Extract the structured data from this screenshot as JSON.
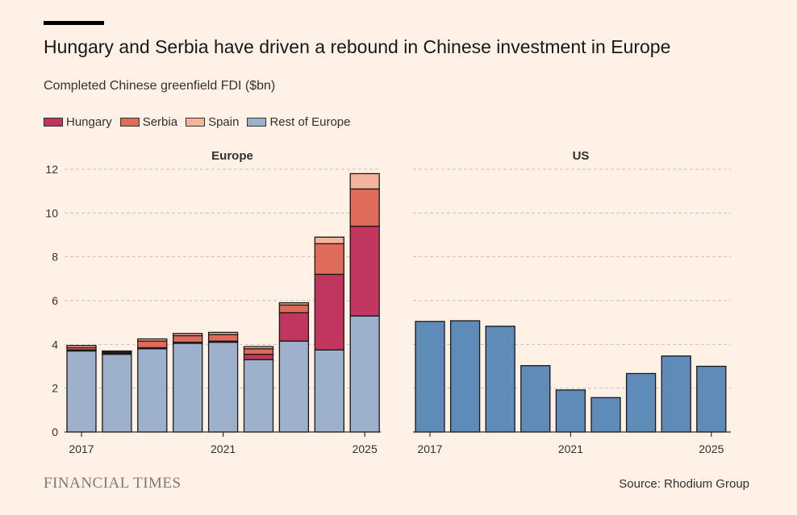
{
  "header": {
    "title": "Hungary and Serbia have driven a rebound in Chinese investment in Europe",
    "subtitle": "Completed Chinese greenfield FDI ($bn)"
  },
  "footer": {
    "brand": "FINANCIAL TIMES",
    "source": "Source: Rhodium Group"
  },
  "colors": {
    "hungary": "#c0365f",
    "serbia": "#df6b5a",
    "spain": "#f2b49a",
    "rest_of_europe": "#9eb1cc",
    "us": "#5f8bb9",
    "grid": "#c9c1b8",
    "axis": "#33302e"
  },
  "legend": [
    {
      "label": "Hungary",
      "color": "#c0365f"
    },
    {
      "label": "Serbia",
      "color": "#df6b5a"
    },
    {
      "label": "Spain",
      "color": "#f2b49a"
    },
    {
      "label": "Rest of Europe",
      "color": "#9eb1cc"
    }
  ],
  "chart_data": [
    {
      "type": "bar",
      "stacked": true,
      "title": "Europe",
      "x": [
        2017,
        2018,
        2019,
        2020,
        2021,
        2022,
        2023,
        2024,
        2025
      ],
      "xticks": [
        "2017",
        "2021",
        "2025"
      ],
      "yticks": [
        "0",
        "2",
        "4",
        "6",
        "8",
        "10",
        "12"
      ],
      "ylim": [
        0,
        12
      ],
      "grid": true,
      "series": [
        {
          "name": "Rest of Europe",
          "values": [
            3.7,
            3.55,
            3.8,
            4.05,
            4.1,
            3.3,
            4.15,
            3.75,
            5.3
          ]
        },
        {
          "name": "Hungary",
          "values": [
            0.05,
            0.05,
            0.05,
            0.05,
            0.05,
            0.25,
            1.3,
            3.45,
            4.1
          ]
        },
        {
          "name": "Serbia",
          "values": [
            0.1,
            0.05,
            0.3,
            0.3,
            0.3,
            0.25,
            0.35,
            1.4,
            1.7
          ]
        },
        {
          "name": "Spain",
          "values": [
            0.1,
            0.05,
            0.1,
            0.1,
            0.1,
            0.1,
            0.1,
            0.3,
            0.7
          ]
        }
      ]
    },
    {
      "type": "bar",
      "title": "US",
      "x": [
        2017,
        2018,
        2019,
        2020,
        2021,
        2022,
        2023,
        2024,
        2025
      ],
      "xticks": [
        "2017",
        "2021",
        "2025"
      ],
      "ylim": [
        0,
        12
      ],
      "grid": true,
      "series": [
        {
          "name": "US",
          "values": [
            5.05,
            5.08,
            4.83,
            3.03,
            1.92,
            1.57,
            2.67,
            3.47,
            3.0
          ]
        }
      ]
    }
  ]
}
